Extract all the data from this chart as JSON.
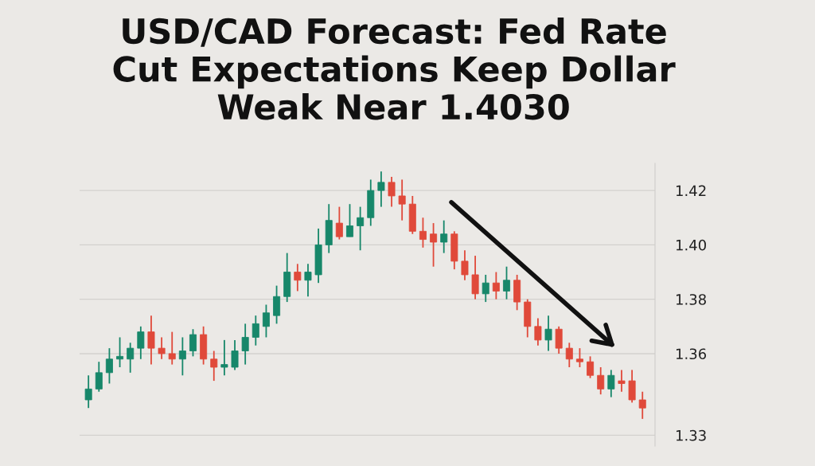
{
  "chart_data": {
    "type": "candlestick",
    "title": "USD/CAD Forecast: Fed Rate\nCut Expectations Keep Dollar\nWeak Near 1.4030",
    "categories": [
      null,
      null,
      null,
      null,
      null,
      null,
      null,
      null,
      null,
      null,
      null,
      null,
      null,
      null,
      null,
      null,
      null,
      null,
      null,
      null,
      null,
      null,
      null,
      null,
      null,
      null,
      null,
      null,
      null,
      null,
      null,
      null,
      null,
      null,
      null,
      null,
      null,
      null,
      null,
      null,
      null,
      null,
      null,
      null,
      null,
      null,
      null,
      null,
      null,
      null,
      null,
      null,
      null,
      null
    ],
    "ohlc": [
      [
        1.343,
        1.352,
        1.34,
        1.347
      ],
      [
        1.347,
        1.357,
        1.346,
        1.353
      ],
      [
        1.353,
        1.362,
        1.349,
        1.358
      ],
      [
        1.358,
        1.366,
        1.355,
        1.359
      ],
      [
        1.358,
        1.364,
        1.353,
        1.362
      ],
      [
        1.362,
        1.37,
        1.358,
        1.368
      ],
      [
        1.368,
        1.374,
        1.356,
        1.362
      ],
      [
        1.362,
        1.366,
        1.358,
        1.36
      ],
      [
        1.36,
        1.368,
        1.356,
        1.358
      ],
      [
        1.358,
        1.366,
        1.352,
        1.361
      ],
      [
        1.361,
        1.369,
        1.359,
        1.367
      ],
      [
        1.367,
        1.37,
        1.356,
        1.358
      ],
      [
        1.358,
        1.361,
        1.35,
        1.355
      ],
      [
        1.355,
        1.365,
        1.352,
        1.356
      ],
      [
        1.355,
        1.365,
        1.354,
        1.361
      ],
      [
        1.361,
        1.371,
        1.356,
        1.366
      ],
      [
        1.366,
        1.374,
        1.363,
        1.371
      ],
      [
        1.37,
        1.378,
        1.366,
        1.375
      ],
      [
        1.374,
        1.385,
        1.371,
        1.381
      ],
      [
        1.381,
        1.397,
        1.379,
        1.39
      ],
      [
        1.39,
        1.393,
        1.383,
        1.387
      ],
      [
        1.387,
        1.393,
        1.381,
        1.39
      ],
      [
        1.389,
        1.406,
        1.386,
        1.4
      ],
      [
        1.4,
        1.415,
        1.397,
        1.409
      ],
      [
        1.408,
        1.414,
        1.402,
        1.403
      ],
      [
        1.403,
        1.415,
        1.403,
        1.407
      ],
      [
        1.407,
        1.414,
        1.398,
        1.41
      ],
      [
        1.41,
        1.424,
        1.407,
        1.42
      ],
      [
        1.42,
        1.427,
        1.414,
        1.423
      ],
      [
        1.423,
        1.425,
        1.414,
        1.418
      ],
      [
        1.418,
        1.424,
        1.409,
        1.415
      ],
      [
        1.415,
        1.418,
        1.404,
        1.405
      ],
      [
        1.405,
        1.41,
        1.399,
        1.402
      ],
      [
        1.404,
        1.408,
        1.392,
        1.401
      ],
      [
        1.401,
        1.409,
        1.397,
        1.404
      ],
      [
        1.404,
        1.405,
        1.391,
        1.394
      ],
      [
        1.394,
        1.398,
        1.387,
        1.389
      ],
      [
        1.389,
        1.396,
        1.38,
        1.382
      ],
      [
        1.382,
        1.389,
        1.379,
        1.386
      ],
      [
        1.386,
        1.39,
        1.38,
        1.383
      ],
      [
        1.383,
        1.392,
        1.38,
        1.387
      ],
      [
        1.387,
        1.389,
        1.376,
        1.379
      ],
      [
        1.379,
        1.38,
        1.366,
        1.37
      ],
      [
        1.37,
        1.373,
        1.363,
        1.365
      ],
      [
        1.365,
        1.374,
        1.361,
        1.369
      ],
      [
        1.369,
        1.37,
        1.36,
        1.362
      ],
      [
        1.362,
        1.364,
        1.355,
        1.358
      ],
      [
        1.358,
        1.362,
        1.355,
        1.357
      ],
      [
        1.357,
        1.359,
        1.351,
        1.352
      ],
      [
        1.352,
        1.355,
        1.345,
        1.347
      ],
      [
        1.347,
        1.354,
        1.344,
        1.352
      ],
      [
        1.35,
        1.354,
        1.346,
        1.349
      ],
      [
        1.35,
        1.354,
        1.342,
        1.343
      ],
      [
        1.343,
        1.346,
        1.336,
        1.34
      ]
    ],
    "colors": [
      "#17876a",
      "#17876a",
      "#17876a",
      "#17876a",
      "#17876a",
      "#17876a",
      "#e0493a",
      "#e0493a",
      "#e0493a",
      "#17876a",
      "#17876a",
      "#e0493a",
      "#e0493a",
      "#17876a",
      "#17876a",
      "#17876a",
      "#17876a",
      "#17876a",
      "#17876a",
      "#17876a",
      "#e0493a",
      "#17876a",
      "#17876a",
      "#17876a",
      "#e0493a",
      "#17876a",
      "#17876a",
      "#17876a",
      "#17876a",
      "#e0493a",
      "#e0493a",
      "#e0493a",
      "#e0493a",
      "#e0493a",
      "#17876a",
      "#e0493a",
      "#e0493a",
      "#e0493a",
      "#17876a",
      "#e0493a",
      "#17876a",
      "#e0493a",
      "#e0493a",
      "#e0493a",
      "#17876a",
      "#e0493a",
      "#e0493a",
      "#e0493a",
      "#e0493a",
      "#e0493a",
      "#17876a",
      "#e0493a",
      "#e0493a",
      "#e0493a"
    ],
    "ylim": [
      1.326,
      1.43
    ],
    "yticks": [
      1.42,
      {
        "value": 1.4,
        "label": "1.40"
      },
      1.38,
      1.36,
      {
        "value": 1.33,
        "label": "1.33"
      }
    ],
    "grid": "y",
    "legend": false
  }
}
